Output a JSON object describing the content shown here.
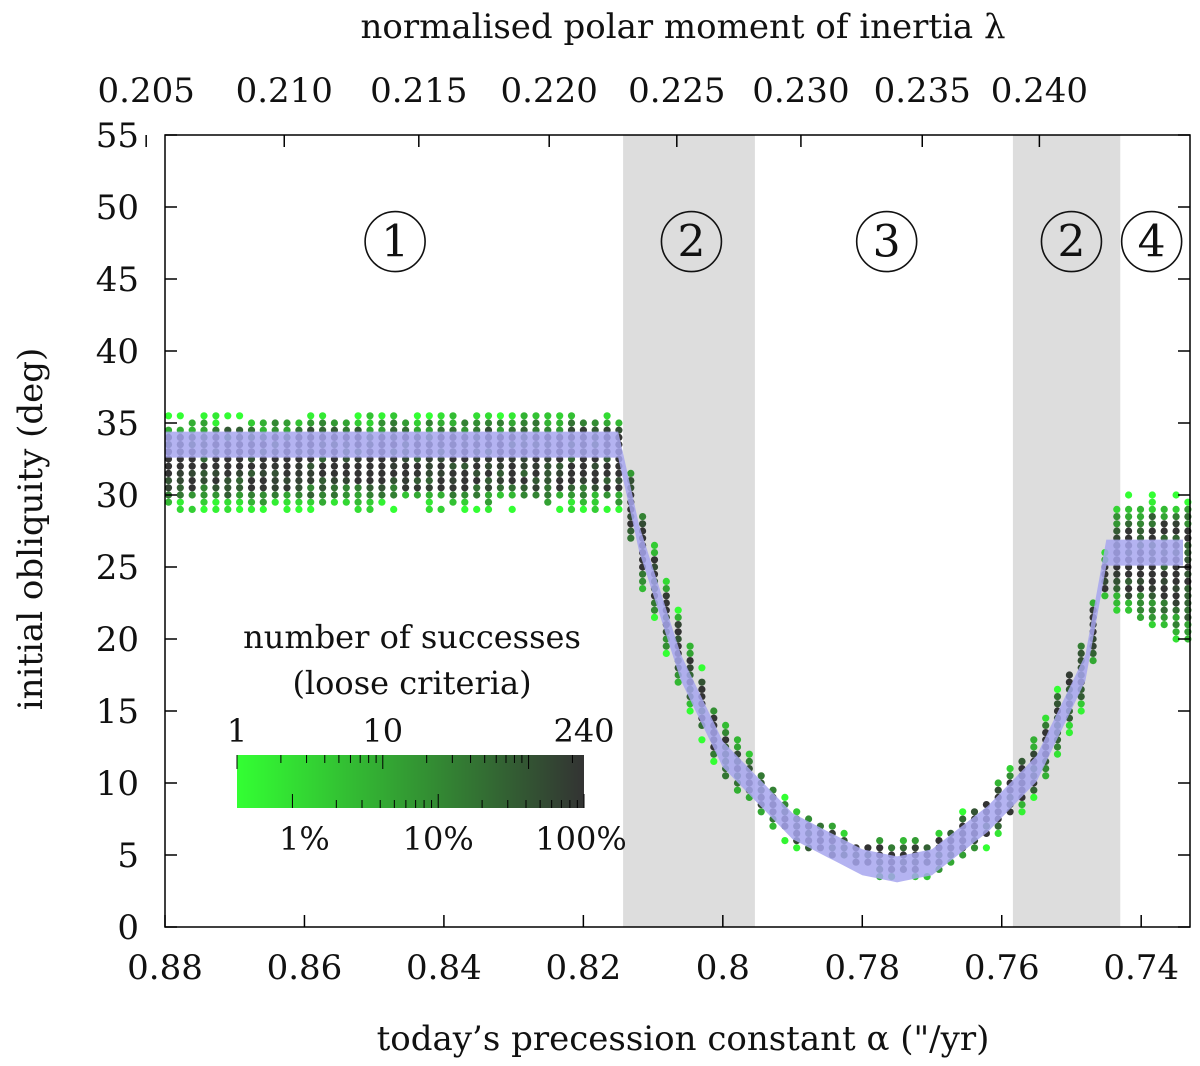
{
  "chart_data": {
    "type": "scatter",
    "x_axis": {
      "label": "today’s precession constant α (\"/yr)",
      "range": [
        0.88,
        0.733
      ],
      "reversed": true,
      "ticks": [
        "0.88",
        "0.86",
        "0.84",
        "0.82",
        "0.8",
        "0.78",
        "0.76",
        "0.74"
      ]
    },
    "x2_axis": {
      "label": "normalised polar moment of inertia λ",
      "ticks": [
        "0.205",
        "0.210",
        "0.215",
        "0.220",
        "0.225",
        "0.230",
        "0.235",
        "0.240"
      ],
      "tick_alpha": [
        0.8827,
        0.8629,
        0.8436,
        0.8249,
        0.8066,
        0.7888,
        0.7714,
        0.7546
      ]
    },
    "y_axis": {
      "label": "initial obliquity (deg)",
      "range": [
        0,
        55
      ],
      "ticks": [
        "0",
        "5",
        "10",
        "15",
        "20",
        "25",
        "30",
        "35",
        "40",
        "45",
        "50",
        "55"
      ]
    },
    "shaded_regions": [
      {
        "from": 0.8143,
        "to": 0.7954
      },
      {
        "from": 0.7584,
        "to": 0.743
      }
    ],
    "region_labels": [
      {
        "text": "1",
        "x": 0.847,
        "y": 47.6
      },
      {
        "text": "2",
        "x": 0.8045,
        "y": 47.6
      },
      {
        "text": "3",
        "x": 0.7765,
        "y": 47.6
      },
      {
        "text": "2",
        "x": 0.75,
        "y": 47.6
      },
      {
        "text": "4",
        "x": 0.7385,
        "y": 47.6
      }
    ],
    "success_band": {
      "center": [
        [
          0.88,
          33.5
        ],
        [
          0.815,
          33.5
        ],
        [
          0.812,
          27
        ],
        [
          0.806,
          18
        ],
        [
          0.8,
          12
        ],
        [
          0.79,
          7
        ],
        [
          0.78,
          4.5
        ],
        [
          0.775,
          4
        ],
        [
          0.77,
          4.5
        ],
        [
          0.762,
          7.5
        ],
        [
          0.755,
          11
        ],
        [
          0.748,
          18
        ],
        [
          0.745,
          26
        ],
        [
          0.733,
          26
        ]
      ],
      "loose_upper": [
        [
          0.88,
          35.5
        ],
        [
          0.815,
          36
        ],
        [
          0.812,
          30
        ],
        [
          0.806,
          21.5
        ],
        [
          0.8,
          14.5
        ],
        [
          0.79,
          8.5
        ],
        [
          0.78,
          6.2
        ],
        [
          0.775,
          6.2
        ],
        [
          0.77,
          6.5
        ],
        [
          0.762,
          9.5
        ],
        [
          0.755,
          13.5
        ],
        [
          0.748,
          21
        ],
        [
          0.745,
          26.5
        ],
        [
          0.743,
          30
        ],
        [
          0.733,
          30
        ]
      ],
      "loose_lower": [
        [
          0.88,
          29
        ],
        [
          0.815,
          29
        ],
        [
          0.812,
          24
        ],
        [
          0.806,
          16
        ],
        [
          0.8,
          10
        ],
        [
          0.79,
          5.5
        ],
        [
          0.78,
          3.5
        ],
        [
          0.775,
          3.2
        ],
        [
          0.77,
          3.5
        ],
        [
          0.762,
          5.5
        ],
        [
          0.755,
          9
        ],
        [
          0.748,
          15.5
        ],
        [
          0.745,
          23
        ],
        [
          0.743,
          21.5
        ],
        [
          0.733,
          19.5
        ]
      ],
      "best_fit_width_deg": 1.8
    },
    "colorbar": {
      "title": [
        "number of successes",
        "(loose criteria)"
      ],
      "top_ticks": [
        "1",
        "10",
        "240"
      ],
      "bottom_ticks": [
        "1%",
        "10%",
        "100%"
      ],
      "color_low": "#33ff33",
      "color_mid": "#339933",
      "color_high": "#333333"
    },
    "colors": {
      "band_highlight": "#a7a6ef",
      "shade": "#dddddd"
    }
  }
}
